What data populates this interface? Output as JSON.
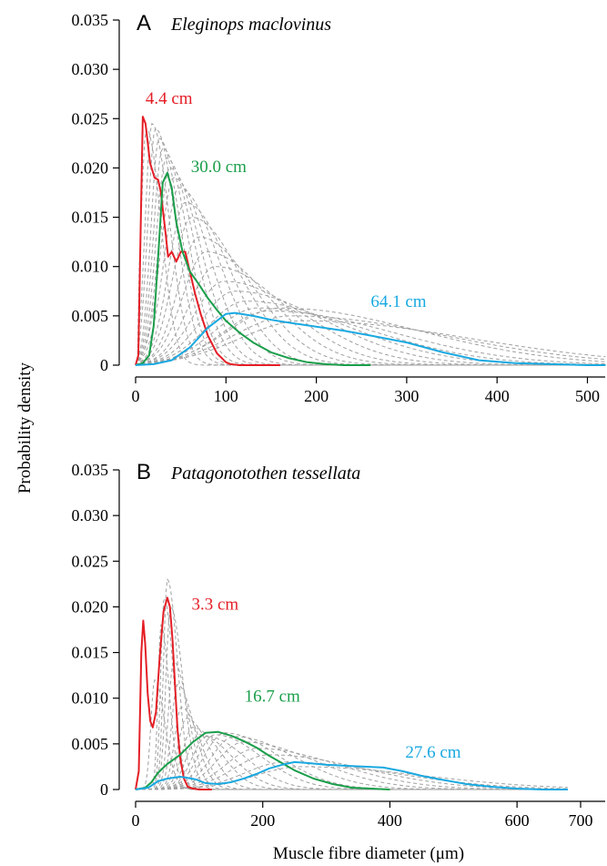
{
  "figure": {
    "ylabel": "Probability density",
    "xlabel": "Muscle fibre diameter (μm)"
  },
  "colors": {
    "red": "#e41e26",
    "green": "#1a9e4a",
    "blue": "#19a9e1",
    "gray": "#a0a0a0",
    "axis": "#000000"
  },
  "chart_data": [
    {
      "type": "line",
      "panel_letter": "A",
      "title": "Eleginops maclovinus",
      "xlim": [
        0,
        520
      ],
      "ylim": [
        0,
        0.035
      ],
      "xticks": [
        0,
        100,
        200,
        300,
        400,
        500
      ],
      "xtick_labels": [
        "0",
        "100",
        "200",
        "300",
        "400",
        "500"
      ],
      "yticks": [
        0,
        0.005,
        0.01,
        0.015,
        0.02,
        0.025,
        0.03,
        0.035
      ],
      "ytick_labels": [
        "0",
        "0.005",
        "0.010",
        "0.015",
        "0.020",
        "0.025",
        "0.030",
        "0.035"
      ],
      "series": [
        {
          "name": "4.4 cm",
          "color": "red",
          "x": [
            0,
            3,
            6,
            8,
            11,
            16,
            21,
            25,
            28,
            33,
            36,
            40,
            45,
            50,
            55,
            60,
            66,
            72,
            80,
            90,
            100,
            105,
            115,
            130,
            160
          ],
          "y": [
            0,
            0.001,
            0.016,
            0.0252,
            0.0245,
            0.0205,
            0.019,
            0.0188,
            0.0175,
            0.0135,
            0.011,
            0.0115,
            0.0105,
            0.0115,
            0.0115,
            0.0095,
            0.0072,
            0.0052,
            0.003,
            0.0012,
            0.0003,
            0.0001,
            0,
            0,
            0
          ]
        },
        {
          "name": "30.0 cm",
          "color": "green",
          "x": [
            0,
            8,
            15,
            20,
            25,
            30,
            35,
            40,
            45,
            52,
            60,
            70,
            80,
            90,
            100,
            115,
            130,
            150,
            170,
            190,
            210,
            230,
            260
          ],
          "y": [
            0,
            0.0002,
            0.001,
            0.004,
            0.011,
            0.0185,
            0.0195,
            0.018,
            0.0145,
            0.0115,
            0.0095,
            0.0082,
            0.0068,
            0.0056,
            0.0045,
            0.0033,
            0.0023,
            0.0013,
            0.0007,
            0.0003,
            0.0001,
            0,
            0
          ]
        },
        {
          "name": "64.1 cm",
          "color": "blue",
          "x": [
            0,
            20,
            40,
            60,
            80,
            100,
            110,
            130,
            150,
            170,
            200,
            230,
            260,
            300,
            340,
            380,
            420,
            460,
            500,
            520
          ],
          "y": [
            0,
            0.0001,
            0.0005,
            0.0018,
            0.0038,
            0.0052,
            0.0053,
            0.005,
            0.0046,
            0.0043,
            0.0039,
            0.0035,
            0.003,
            0.0023,
            0.0013,
            0.0005,
            0.0002,
            0.0001,
            0,
            0
          ]
        }
      ],
      "annotations": [
        {
          "text": "4.4 cm",
          "color": "red",
          "x": 37,
          "y": 0.0265
        },
        {
          "text": "30.0 cm",
          "color": "green",
          "x": 92,
          "y": 0.0196
        },
        {
          "text": "64.1 cm",
          "color": "blue",
          "x": 291,
          "y": 0.0059
        }
      ],
      "gray_peaks": [
        [
          12,
          0.024,
          10
        ],
        [
          18,
          0.0245,
          12
        ],
        [
          22,
          0.024,
          14
        ],
        [
          26,
          0.023,
          15
        ],
        [
          30,
          0.022,
          17
        ],
        [
          34,
          0.021,
          19
        ],
        [
          38,
          0.02,
          21
        ],
        [
          42,
          0.019,
          24
        ],
        [
          48,
          0.018,
          27
        ],
        [
          55,
          0.0165,
          30
        ],
        [
          62,
          0.015,
          34
        ],
        [
          70,
          0.013,
          38
        ],
        [
          78,
          0.0115,
          43
        ],
        [
          88,
          0.01,
          48
        ],
        [
          98,
          0.0085,
          55
        ],
        [
          110,
          0.0075,
          62
        ],
        [
          122,
          0.0065,
          70
        ],
        [
          135,
          0.0058,
          78
        ],
        [
          148,
          0.0055,
          85
        ],
        [
          160,
          0.0058,
          95
        ],
        [
          172,
          0.005,
          105
        ],
        [
          185,
          0.0045,
          115
        ]
      ]
    },
    {
      "type": "line",
      "panel_letter": "B",
      "title": "Patagonotothen tessellata",
      "xlim": [
        0,
        720
      ],
      "ylim": [
        0,
        0.035
      ],
      "xticks": [
        0,
        200,
        400,
        600,
        700
      ],
      "xtick_labels": [
        "0",
        "200",
        "400",
        "600",
        "700"
      ],
      "yticks": [
        0,
        0.005,
        0.01,
        0.015,
        0.02,
        0.025,
        0.03,
        0.035
      ],
      "ytick_labels": [
        "0",
        "0.005",
        "0.010",
        "0.015",
        "0.020",
        "0.025",
        "0.030",
        "0.035"
      ],
      "series": [
        {
          "name": "3.3 cm",
          "color": "red",
          "x": [
            0,
            5,
            9,
            12,
            15,
            19,
            23,
            27,
            32,
            38,
            44,
            50,
            54,
            58,
            62,
            66,
            70,
            76,
            82,
            90,
            100,
            120
          ],
          "y": [
            0,
            0.002,
            0.015,
            0.0185,
            0.016,
            0.0105,
            0.0075,
            0.0068,
            0.0085,
            0.0145,
            0.0195,
            0.021,
            0.02,
            0.0165,
            0.0115,
            0.0065,
            0.0035,
            0.0012,
            0.0003,
            0.0001,
            0,
            0
          ]
        },
        {
          "name": "16.7 cm",
          "color": "green",
          "x": [
            0,
            15,
            25,
            35,
            50,
            70,
            90,
            110,
            130,
            150,
            170,
            190,
            210,
            230,
            250,
            280,
            310,
            340,
            370,
            400
          ],
          "y": [
            0,
            0.0002,
            0.0008,
            0.0018,
            0.0028,
            0.0038,
            0.0052,
            0.0062,
            0.0063,
            0.0059,
            0.0053,
            0.0046,
            0.0037,
            0.0029,
            0.0021,
            0.0012,
            0.0006,
            0.0002,
            0.0001,
            0
          ]
        },
        {
          "name": "27.6 cm",
          "color": "blue",
          "x": [
            0,
            20,
            35,
            50,
            60,
            70,
            80,
            95,
            110,
            130,
            150,
            170,
            190,
            210,
            230,
            250,
            270,
            300,
            330,
            360,
            390,
            420,
            450,
            480,
            520,
            560,
            600,
            640,
            680
          ],
          "y": [
            0,
            0.0002,
            0.0009,
            0.0012,
            0.0013,
            0.0014,
            0.0013,
            0.0011,
            0.0007,
            0.0006,
            0.0008,
            0.0012,
            0.0017,
            0.0023,
            0.0027,
            0.003,
            0.0029,
            0.0027,
            0.0026,
            0.0025,
            0.0024,
            0.002,
            0.0015,
            0.0011,
            0.0006,
            0.0003,
            0.0001,
            0,
            0
          ]
        }
      ],
      "annotations": [
        {
          "text": "3.3 cm",
          "color": "red",
          "x": 125,
          "y": 0.0197
        },
        {
          "text": "16.7 cm",
          "color": "green",
          "x": 215,
          "y": 0.0096
        },
        {
          "text": "27.6 cm",
          "color": "blue",
          "x": 468,
          "y": 0.0035
        }
      ],
      "gray_peaks": [
        [
          30,
          0.012,
          10
        ],
        [
          40,
          0.018,
          8
        ],
        [
          45,
          0.021,
          9
        ],
        [
          50,
          0.023,
          10
        ],
        [
          55,
          0.02,
          12
        ],
        [
          60,
          0.014,
          14
        ],
        [
          66,
          0.0115,
          16
        ],
        [
          72,
          0.009,
          18
        ],
        [
          80,
          0.0078,
          22
        ],
        [
          90,
          0.0068,
          27
        ],
        [
          100,
          0.006,
          32
        ],
        [
          112,
          0.0058,
          38
        ],
        [
          125,
          0.006,
          45
        ],
        [
          140,
          0.0062,
          52
        ],
        [
          155,
          0.0058,
          60
        ],
        [
          170,
          0.0052,
          70
        ],
        [
          190,
          0.0045,
          80
        ],
        [
          210,
          0.0038,
          92
        ],
        [
          235,
          0.003,
          105
        ],
        [
          260,
          0.0025,
          120
        ]
      ]
    }
  ]
}
